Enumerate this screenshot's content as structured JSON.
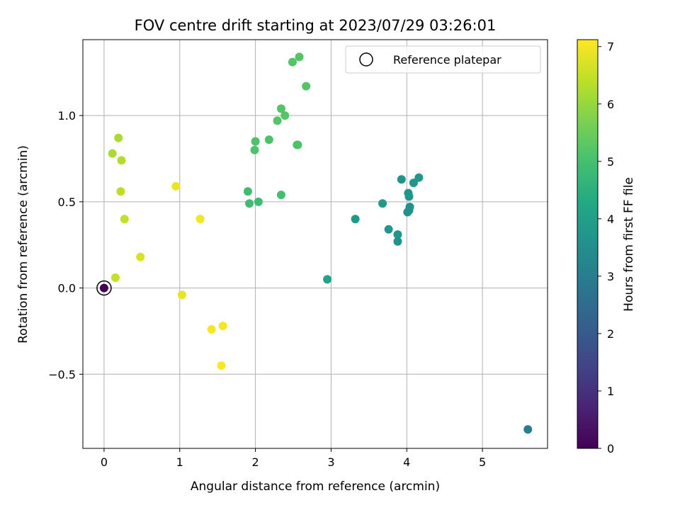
{
  "chart_data": {
    "type": "scatter",
    "title": "FOV centre drift starting at 2023/07/29 03:26:01",
    "xlabel": "Angular distance from reference (arcmin)",
    "ylabel": "Rotation from reference (arcmin)",
    "xlim": [
      -0.28,
      5.86
    ],
    "ylim": [
      -0.93,
      1.44
    ],
    "xticks": [
      0,
      1,
      2,
      3,
      4,
      5
    ],
    "yticks": [
      -0.5,
      0.0,
      0.5,
      1.0
    ],
    "xtick_labels": [
      "0",
      "1",
      "2",
      "3",
      "4",
      "5"
    ],
    "ytick_labels": [
      "−0.5",
      "0.0",
      "0.5",
      "1.0"
    ],
    "grid": true,
    "legend": {
      "placement": "top-right",
      "entries": [
        "Reference platepar"
      ]
    },
    "reference_point": {
      "x": 0.0,
      "y": 0.0,
      "hours": 0.0
    },
    "colorbar": {
      "label": "Hours from first FF file",
      "range": [
        0,
        7.12
      ],
      "ticks": [
        0,
        1,
        2,
        3,
        4,
        5,
        6,
        7
      ],
      "tick_labels": [
        "0",
        "1",
        "2",
        "3",
        "4",
        "5",
        "6",
        "7"
      ],
      "colormap": [
        "#440154",
        "#482475",
        "#414487",
        "#355f8d",
        "#2a788e",
        "#21918c",
        "#22a884",
        "#44bf70",
        "#7ad151",
        "#bddf26",
        "#fde725"
      ]
    },
    "points": [
      {
        "x": 5.6,
        "y": -0.82,
        "hours": 3.0
      },
      {
        "x": 2.95,
        "y": 0.05,
        "hours": 4.1
      },
      {
        "x": 3.32,
        "y": 0.4,
        "hours": 3.8
      },
      {
        "x": 3.68,
        "y": 0.49,
        "hours": 3.8
      },
      {
        "x": 3.76,
        "y": 0.34,
        "hours": 3.7
      },
      {
        "x": 3.88,
        "y": 0.31,
        "hours": 3.7
      },
      {
        "x": 3.88,
        "y": 0.27,
        "hours": 3.6
      },
      {
        "x": 3.93,
        "y": 0.63,
        "hours": 3.6
      },
      {
        "x": 4.02,
        "y": 0.55,
        "hours": 3.7
      },
      {
        "x": 4.03,
        "y": 0.53,
        "hours": 3.7
      },
      {
        "x": 4.04,
        "y": 0.47,
        "hours": 3.6
      },
      {
        "x": 4.01,
        "y": 0.44,
        "hours": 3.6
      },
      {
        "x": 4.03,
        "y": 0.45,
        "hours": 3.6
      },
      {
        "x": 4.09,
        "y": 0.61,
        "hours": 3.7
      },
      {
        "x": 4.16,
        "y": 0.64,
        "hours": 3.7
      },
      {
        "x": 1.9,
        "y": 0.56,
        "hours": 4.9
      },
      {
        "x": 1.92,
        "y": 0.49,
        "hours": 4.9
      },
      {
        "x": 2.04,
        "y": 0.5,
        "hours": 4.9
      },
      {
        "x": 1.99,
        "y": 0.8,
        "hours": 5.1
      },
      {
        "x": 2.0,
        "y": 0.85,
        "hours": 5.1
      },
      {
        "x": 2.18,
        "y": 0.86,
        "hours": 5.1
      },
      {
        "x": 2.34,
        "y": 0.54,
        "hours": 5.0
      },
      {
        "x": 2.29,
        "y": 0.97,
        "hours": 5.2
      },
      {
        "x": 2.34,
        "y": 1.04,
        "hours": 5.2
      },
      {
        "x": 2.39,
        "y": 1.0,
        "hours": 5.2
      },
      {
        "x": 2.55,
        "y": 0.83,
        "hours": 5.1
      },
      {
        "x": 2.56,
        "y": 0.83,
        "hours": 5.1
      },
      {
        "x": 2.49,
        "y": 1.31,
        "hours": 5.2
      },
      {
        "x": 2.58,
        "y": 1.34,
        "hours": 5.2
      },
      {
        "x": 2.67,
        "y": 1.17,
        "hours": 5.2
      },
      {
        "x": 0.19,
        "y": 0.87,
        "hours": 6.2
      },
      {
        "x": 0.11,
        "y": 0.78,
        "hours": 6.2
      },
      {
        "x": 0.23,
        "y": 0.74,
        "hours": 6.3
      },
      {
        "x": 0.22,
        "y": 0.56,
        "hours": 6.4
      },
      {
        "x": 0.27,
        "y": 0.4,
        "hours": 6.5
      },
      {
        "x": 0.48,
        "y": 0.18,
        "hours": 6.7
      },
      {
        "x": 0.15,
        "y": 0.06,
        "hours": 6.5
      },
      {
        "x": 0.95,
        "y": 0.59,
        "hours": 6.9
      },
      {
        "x": 1.03,
        "y": -0.04,
        "hours": 6.9
      },
      {
        "x": 1.27,
        "y": 0.4,
        "hours": 7.0
      },
      {
        "x": 1.42,
        "y": -0.24,
        "hours": 7.05
      },
      {
        "x": 1.57,
        "y": -0.22,
        "hours": 7.05
      },
      {
        "x": 1.55,
        "y": -0.45,
        "hours": 7.1
      },
      {
        "x": 0.0,
        "y": 0.0,
        "hours": 0.0
      }
    ]
  }
}
